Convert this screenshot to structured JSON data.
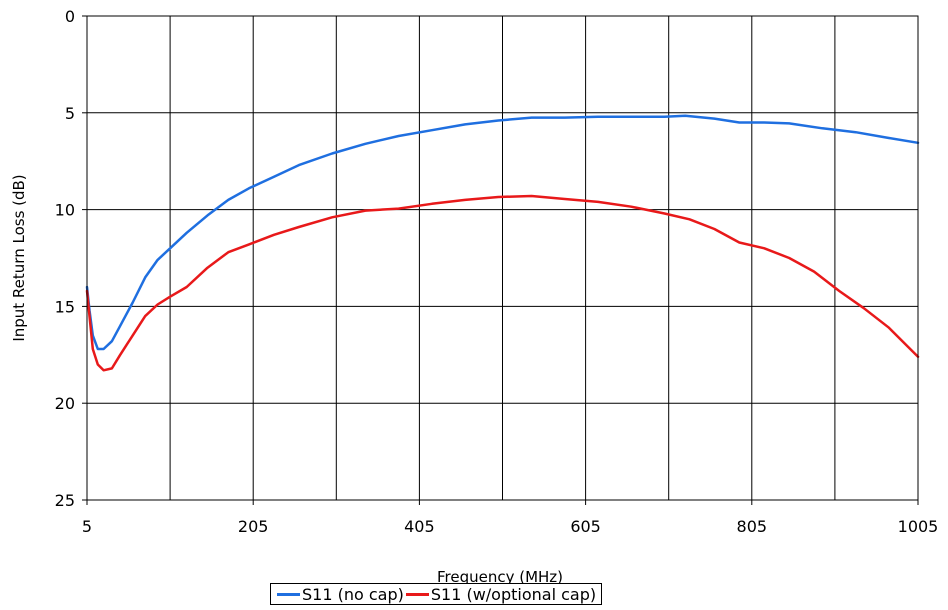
{
  "chart_data": {
    "type": "line",
    "title": "",
    "xlabel": "Frequency (MHz)",
    "ylabel": "Input Return Loss (dB)",
    "xlim": [
      5,
      1005
    ],
    "ylim": [
      0,
      25
    ],
    "y_inverted": true,
    "grid": true,
    "legend_position": "bottom",
    "x_ticks": [
      "5",
      "205",
      "405",
      "605",
      "805",
      "1005"
    ],
    "y_ticks": [
      "0",
      "5",
      "10",
      "15",
      "20",
      "25"
    ],
    "series": [
      {
        "name": "S11 (no cap)",
        "color": "#1f6fe0",
        "x": [
          5,
          8,
          12,
          18,
          25,
          35,
          45,
          60,
          75,
          90,
          105,
          125,
          150,
          175,
          200,
          230,
          260,
          300,
          340,
          380,
          420,
          460,
          500,
          540,
          580,
          620,
          660,
          700,
          725,
          760,
          790,
          820,
          850,
          890,
          930,
          970,
          1005
        ],
        "y": [
          14.0,
          15.2,
          16.5,
          17.2,
          17.2,
          16.8,
          16.0,
          14.8,
          13.5,
          12.6,
          12.0,
          11.2,
          10.3,
          9.5,
          8.9,
          8.3,
          7.7,
          7.1,
          6.6,
          6.2,
          5.9,
          5.6,
          5.4,
          5.25,
          5.25,
          5.2,
          5.2,
          5.2,
          5.15,
          5.3,
          5.5,
          5.5,
          5.55,
          5.8,
          6.0,
          6.3,
          6.55
        ]
      },
      {
        "name": "S11 (w/optional cap)",
        "color": "#e8191a",
        "x": [
          5,
          8,
          12,
          18,
          25,
          35,
          45,
          60,
          75,
          90,
          105,
          125,
          150,
          175,
          200,
          230,
          260,
          300,
          340,
          380,
          420,
          460,
          500,
          540,
          580,
          620,
          660,
          700,
          730,
          760,
          790,
          820,
          850,
          880,
          910,
          940,
          970,
          1005
        ],
        "y": [
          14.2,
          15.5,
          17.2,
          18.0,
          18.3,
          18.2,
          17.5,
          16.5,
          15.5,
          14.9,
          14.5,
          14.0,
          13.0,
          12.2,
          11.8,
          11.3,
          10.9,
          10.4,
          10.05,
          9.95,
          9.7,
          9.5,
          9.35,
          9.3,
          9.45,
          9.6,
          9.85,
          10.2,
          10.5,
          11.0,
          11.7,
          12.0,
          12.5,
          13.2,
          14.2,
          15.1,
          16.1,
          17.6
        ]
      }
    ]
  }
}
